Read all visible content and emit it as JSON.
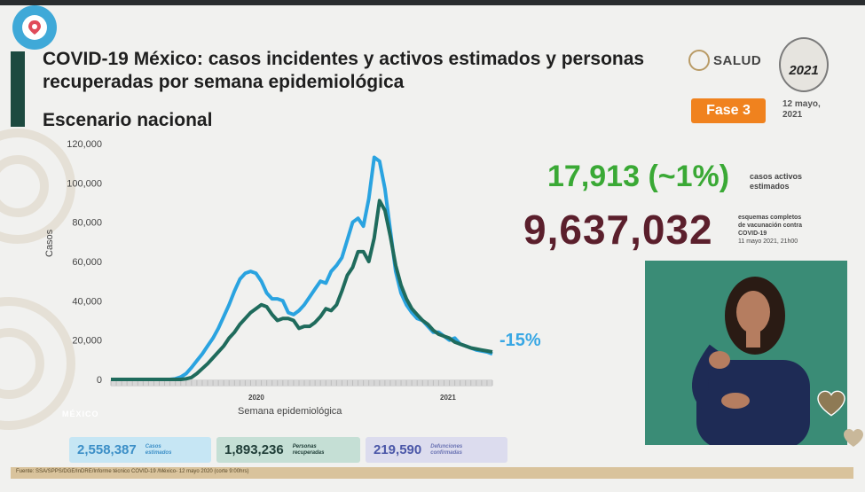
{
  "header": {
    "title": "COVID-19 México: casos incidentes y activos estimados y personas recuperadas por semana epidemiológica",
    "subtitle": "Escenario nacional",
    "salud": "SALUD",
    "emblem_year": "2021",
    "fase": "Fase 3",
    "date_line1": "12 mayo,",
    "date_line2": "2021"
  },
  "stats": {
    "active_value": "17,913 (~1%)",
    "active_label_1": "casos activos",
    "active_label_2": "estimados",
    "vaccine_value": "9,637,032",
    "vaccine_label_1": "esquemas completos",
    "vaccine_label_2": "de vacunación contra",
    "vaccine_label_3": "COVID-19",
    "vaccine_label_4": "11 mayo 2021, 21h00"
  },
  "boxes": {
    "estimated_value": "2,558,387",
    "estimated_l1": "Casos",
    "estimated_l2": "estimados",
    "recovered_value": "1,893,236",
    "recovered_l1": "Personas",
    "recovered_l2": "recuperadas",
    "deaths_value": "219,590",
    "deaths_l1": "Defunciones",
    "deaths_l2": "confirmadas"
  },
  "footer": {
    "source": "Fuente: SSA/SPPS/DGE/InDRE/Informe técnico COVID-19 /México- 12 mayo 2020 (corte 9:00hrs)",
    "mexico": "MÉXICO"
  },
  "colors": {
    "estimated": "#2aa3e0",
    "active": "#1f6b5c",
    "accent": "#f0821e"
  },
  "chart_data": {
    "type": "line",
    "title": "",
    "xlabel": "Semana epidemiológica",
    "ylabel": "Casos",
    "ylim": [
      0,
      120000
    ],
    "yticks": [
      "0",
      "20,000",
      "40,000",
      "60,000",
      "80,000",
      "100,000",
      "120,000"
    ],
    "year_labels": [
      "2020",
      "2021"
    ],
    "change_label": "-15%",
    "x": [
      1,
      2,
      3,
      4,
      5,
      6,
      7,
      8,
      9,
      10,
      11,
      12,
      13,
      14,
      15,
      16,
      17,
      18,
      19,
      20,
      21,
      22,
      23,
      24,
      25,
      26,
      27,
      28,
      29,
      30,
      31,
      32,
      33,
      34,
      35,
      36,
      37,
      38,
      39,
      40,
      41,
      42,
      43,
      44,
      45,
      46,
      47,
      48,
      49,
      50,
      51,
      52,
      53,
      54,
      55,
      56,
      57,
      58,
      59,
      60,
      61,
      62,
      63,
      64,
      65,
      66,
      67,
      68,
      69,
      70,
      71,
      72
    ],
    "series": [
      {
        "values": [
          0,
          0,
          0,
          0,
          0,
          0,
          0,
          0,
          0,
          0,
          0,
          0,
          300,
          1200,
          3000,
          6000,
          9500,
          13000,
          17000,
          21000,
          26000,
          32000,
          38000,
          45000,
          51000,
          54000,
          55000,
          54000,
          50000,
          44000,
          41000,
          41000,
          40000,
          34000,
          33000,
          35000,
          38000,
          42000,
          46000,
          50000,
          49000,
          55000,
          58000,
          62000,
          71000,
          80000,
          82000,
          78000,
          92000,
          113000,
          111000,
          97000,
          76000,
          55000,
          44000,
          38000,
          34000,
          31000,
          30000,
          27000,
          24000,
          24000,
          22000,
          20000,
          21000,
          18000,
          17000,
          16000,
          15000,
          14500,
          14000,
          13000
        ]
      },
      {
        "values": [
          0,
          0,
          0,
          0,
          0,
          0,
          0,
          0,
          0,
          0,
          0,
          0,
          0,
          0,
          300,
          1000,
          3000,
          5500,
          8000,
          11000,
          14000,
          17000,
          21000,
          24000,
          28000,
          31000,
          34000,
          36000,
          38000,
          37000,
          33000,
          30000,
          31000,
          31000,
          30000,
          26000,
          27000,
          27000,
          29000,
          32000,
          36000,
          35000,
          38000,
          45000,
          53000,
          57000,
          65000,
          65000,
          60000,
          72000,
          91000,
          86000,
          73000,
          58000,
          48000,
          41000,
          36000,
          33000,
          30000,
          28000,
          25000,
          23000,
          22000,
          21000,
          19000,
          18000,
          17000,
          16000,
          15500,
          15000,
          14500,
          14000
        ]
      }
    ]
  }
}
